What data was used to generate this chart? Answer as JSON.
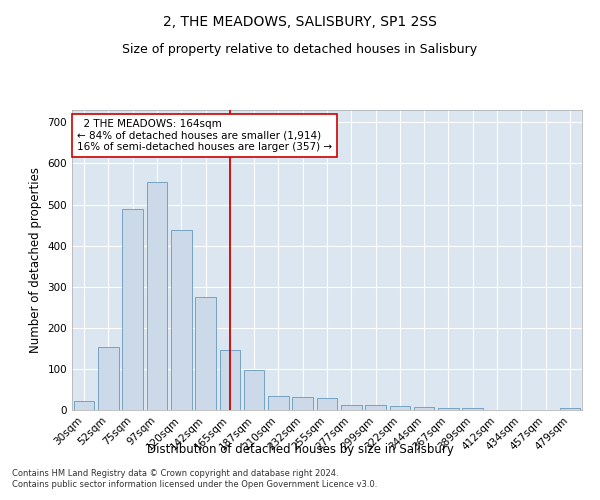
{
  "title": "2, THE MEADOWS, SALISBURY, SP1 2SS",
  "subtitle": "Size of property relative to detached houses in Salisbury",
  "xlabel": "Distribution of detached houses by size in Salisbury",
  "ylabel": "Number of detached properties",
  "categories": [
    "30sqm",
    "52sqm",
    "75sqm",
    "97sqm",
    "120sqm",
    "142sqm",
    "165sqm",
    "187sqm",
    "210sqm",
    "232sqm",
    "255sqm",
    "277sqm",
    "299sqm",
    "322sqm",
    "344sqm",
    "367sqm",
    "389sqm",
    "412sqm",
    "434sqm",
    "457sqm",
    "479sqm"
  ],
  "values": [
    22,
    153,
    490,
    555,
    438,
    275,
    145,
    97,
    35,
    32,
    30,
    12,
    13,
    10,
    7,
    5,
    5,
    0,
    0,
    0,
    5
  ],
  "bar_color": "#ccd9e8",
  "bar_edge_color": "#6699bb",
  "reference_line_x": 6.0,
  "reference_line_color": "#cc0000",
  "annotation_text": "  2 THE MEADOWS: 164sqm\n← 84% of detached houses are smaller (1,914)\n16% of semi-detached houses are larger (357) →",
  "annotation_box_color": "#ffffff",
  "annotation_box_edge": "#cc0000",
  "ylim": [
    0,
    730
  ],
  "yticks": [
    0,
    100,
    200,
    300,
    400,
    500,
    600,
    700
  ],
  "plot_background": "#dce6f0",
  "grid_color": "#ffffff",
  "footer_line1": "Contains HM Land Registry data © Crown copyright and database right 2024.",
  "footer_line2": "Contains public sector information licensed under the Open Government Licence v3.0.",
  "title_fontsize": 10,
  "subtitle_fontsize": 9,
  "axis_label_fontsize": 8.5,
  "tick_fontsize": 7.5,
  "annotation_fontsize": 7.5,
  "footer_fontsize": 6
}
